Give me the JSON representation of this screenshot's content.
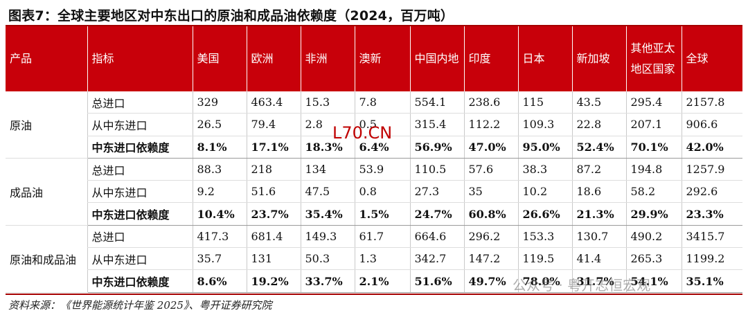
{
  "title": "图表7：全球主要地区对中东出口的原油和成品油依赖度（2024，百万吨）",
  "headers": [
    "产品",
    "指标",
    "美国",
    "欧洲",
    "非洲",
    "澳新",
    "中国内地",
    "印度",
    "日本",
    "新加坡",
    "其他亚太地区国家",
    "全球"
  ],
  "groups": [
    {
      "product": "原油",
      "rows": [
        {
          "metric": "总进口",
          "values": [
            "329",
            "463.4",
            "15.3",
            "7.8",
            "554.1",
            "238.6",
            "115",
            "43.5",
            "295.4",
            "2157.8"
          ]
        },
        {
          "metric": "从中东进口",
          "values": [
            "26.5",
            "79.4",
            "2.8",
            "0.5",
            "315.4",
            "112.2",
            "109.3",
            "22.8",
            "207.1",
            "906.6"
          ]
        },
        {
          "metric": "中东进口依赖度",
          "values": [
            "8.1%",
            "17.1%",
            "18.3%",
            "6.4%",
            "56.9%",
            "47.0%",
            "95.0%",
            "52.4%",
            "70.1%",
            "42.0%"
          ]
        }
      ]
    },
    {
      "product": "成品油",
      "rows": [
        {
          "metric": "总进口",
          "values": [
            "88.3",
            "218",
            "134",
            "53.9",
            "110.5",
            "57.6",
            "38.3",
            "87.2",
            "194.8",
            "1257.9"
          ]
        },
        {
          "metric": "从中东进口",
          "values": [
            "9.2",
            "51.6",
            "47.5",
            "0.8",
            "27.3",
            "35",
            "10.2",
            "18.6",
            "58.2",
            "292.6"
          ]
        },
        {
          "metric": "中东进口依赖度",
          "values": [
            "10.4%",
            "23.7%",
            "35.4%",
            "1.5%",
            "24.7%",
            "60.8%",
            "26.6%",
            "21.3%",
            "29.9%",
            "23.3%"
          ]
        }
      ]
    },
    {
      "product": "原油和成品油",
      "rows": [
        {
          "metric": "总进口",
          "values": [
            "417.3",
            "681.4",
            "149.3",
            "61.7",
            "664.6",
            "296.2",
            "153.3",
            "130.7",
            "490.2",
            "3415.7"
          ]
        },
        {
          "metric": "从中东进口",
          "values": [
            "35.7",
            "131",
            "50.3",
            "1.3",
            "342.7",
            "147.2",
            "119.5",
            "41.4",
            "265.3",
            "1199.2"
          ]
        },
        {
          "metric": "中东进口依赖度",
          "values": [
            "8.6%",
            "19.2%",
            "33.7%",
            "2.1%",
            "51.6%",
            "49.7%",
            "78.0%",
            "31.7%",
            "54.1%",
            "35.1%"
          ]
        }
      ]
    }
  ],
  "source": "资料来源：《世界能源统计年鉴 2025》、粤开证券研究院",
  "watermarks": {
    "center": "L70.CN",
    "corner": "公众号 · 粤开志恒宏观"
  },
  "colors": {
    "header_bg": "#c8000a",
    "header_text": "#ffffff",
    "rule": "#a50000"
  }
}
